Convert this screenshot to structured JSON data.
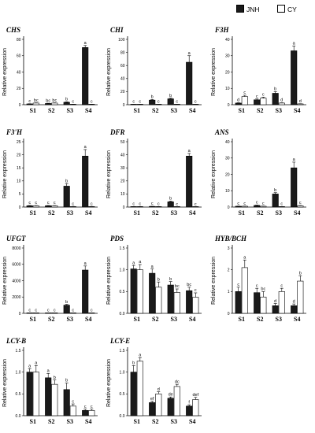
{
  "legend": {
    "items": [
      {
        "label": "JNH",
        "color": "#1a1a1a"
      },
      {
        "label": "CY",
        "color": "#ffffff"
      }
    ]
  },
  "chart_data": [
    {
      "type": "bar",
      "title": "CHS",
      "ylabel": "Relative expression",
      "categories": [
        "S1",
        "S2",
        "S3",
        "S4"
      ],
      "ylim": [
        0,
        80
      ],
      "yticks": [
        0,
        20,
        40,
        60,
        80
      ],
      "series": [
        {
          "name": "JNH",
          "values": [
            1,
            1.5,
            3,
            70
          ],
          "errors": [
            0.2,
            0.3,
            0.5,
            2.5
          ],
          "letters": [
            "c",
            "bc",
            "b",
            "a"
          ]
        },
        {
          "name": "CY",
          "values": [
            2,
            2,
            0.5,
            0.5
          ],
          "errors": [
            0.3,
            0.3,
            0.1,
            0.1
          ],
          "letters": [
            "bc",
            "bc",
            "c",
            "c"
          ]
        }
      ]
    },
    {
      "type": "bar",
      "title": "CHI",
      "ylabel": "Relative expression",
      "categories": [
        "S1",
        "S2",
        "S3",
        "S4"
      ],
      "ylim": [
        0,
        100
      ],
      "yticks": [
        0,
        20,
        40,
        60,
        80,
        100
      ],
      "series": [
        {
          "name": "JNH",
          "values": [
            0.5,
            7,
            9,
            65
          ],
          "errors": [
            0.1,
            1,
            1,
            10
          ],
          "letters": [
            "c",
            "b",
            "b",
            "a"
          ]
        },
        {
          "name": "CY",
          "values": [
            0.5,
            0.5,
            0.5,
            0.5
          ],
          "errors": [
            0.1,
            0.1,
            0.1,
            0.1
          ],
          "letters": [
            "c",
            "c",
            "c",
            "c"
          ]
        }
      ]
    },
    {
      "type": "bar",
      "title": "F3H",
      "ylabel": "Relative expression",
      "categories": [
        "S1",
        "S2",
        "S3",
        "S4"
      ],
      "ylim": [
        0,
        40
      ],
      "yticks": [
        0,
        10,
        20,
        30,
        40
      ],
      "series": [
        {
          "name": "JNH",
          "values": [
            1,
            3,
            7,
            33
          ],
          "errors": [
            0.2,
            0.5,
            1,
            3
          ],
          "letters": [
            "d",
            "c",
            "b",
            "a"
          ]
        },
        {
          "name": "CY",
          "values": [
            5,
            4,
            1,
            0.5
          ],
          "errors": [
            0.8,
            0.6,
            0.2,
            0.1
          ],
          "letters": [
            "c",
            "c",
            "d",
            "d"
          ]
        }
      ]
    },
    {
      "type": "bar",
      "title": "F3'H",
      "ylabel": "Relative expression",
      "categories": [
        "S1",
        "S2",
        "S3",
        "S4"
      ],
      "ylim": [
        0,
        25
      ],
      "yticks": [
        0,
        5,
        10,
        15,
        20,
        25
      ],
      "series": [
        {
          "name": "JNH",
          "values": [
            0.5,
            0.5,
            8,
            19.5
          ],
          "errors": [
            0.1,
            0.1,
            1,
            2.5
          ],
          "letters": [
            "c",
            "c",
            "b",
            "a"
          ]
        },
        {
          "name": "CY",
          "values": [
            0.5,
            0.5,
            0.2,
            0.2
          ],
          "errors": [
            0.1,
            0.1,
            0.05,
            0.05
          ],
          "letters": [
            "c",
            "c",
            "c",
            "c"
          ]
        }
      ]
    },
    {
      "type": "bar",
      "title": "DFR",
      "ylabel": "Relative expression",
      "categories": [
        "S1",
        "S2",
        "S3",
        "S4"
      ],
      "ylim": [
        0,
        50
      ],
      "yticks": [
        0,
        10,
        20,
        30,
        40,
        50
      ],
      "series": [
        {
          "name": "JNH",
          "values": [
            0.3,
            0.5,
            4,
            39
          ],
          "errors": [
            0.1,
            0.1,
            0.5,
            2
          ],
          "letters": [
            "c",
            "c",
            "b",
            "a"
          ]
        },
        {
          "name": "CY",
          "values": [
            0.3,
            0.3,
            0.2,
            0.2
          ],
          "errors": [
            0.1,
            0.1,
            0.05,
            0.05
          ],
          "letters": [
            "c",
            "c",
            "c",
            "c"
          ]
        }
      ]
    },
    {
      "type": "bar",
      "title": "ANS",
      "ylabel": "Relative expression",
      "categories": [
        "S1",
        "S2",
        "S3",
        "S4"
      ],
      "ylim": [
        0,
        40
      ],
      "yticks": [
        0,
        10,
        20,
        30,
        40
      ],
      "series": [
        {
          "name": "JNH",
          "values": [
            0.5,
            1,
            8,
            24
          ],
          "errors": [
            0.1,
            0.2,
            0.8,
            3.5
          ],
          "letters": [
            "c",
            "c",
            "b",
            "a"
          ]
        },
        {
          "name": "CY",
          "values": [
            0.5,
            0.5,
            0.2,
            0.8
          ],
          "errors": [
            0.1,
            0.1,
            0.05,
            0.2
          ],
          "letters": [
            "c",
            "c",
            "c",
            "c"
          ]
        }
      ]
    },
    {
      "type": "bar",
      "title": "UFGT",
      "ylabel": "Relative expression",
      "categories": [
        "S1",
        "S2",
        "S3",
        "S4"
      ],
      "ylim": [
        0,
        8000
      ],
      "yticks": [
        0,
        2000,
        4000,
        6000,
        8000
      ],
      "series": [
        {
          "name": "JNH",
          "values": [
            0,
            0,
            1000,
            5300
          ],
          "errors": [
            0,
            0,
            100,
            500
          ],
          "letters": [
            "c",
            "c",
            "b",
            "a"
          ]
        },
        {
          "name": "CY",
          "values": [
            0,
            0,
            0,
            0
          ],
          "errors": [
            0,
            0,
            0,
            0
          ],
          "letters": [
            "c",
            "c",
            "c",
            "c"
          ]
        }
      ]
    },
    {
      "type": "bar",
      "title": "PDS",
      "ylabel": "Relative expression",
      "categories": [
        "S1",
        "S2",
        "S3",
        "S4"
      ],
      "ylim": [
        0,
        1.5
      ],
      "yticks": [
        0.0,
        0.5,
        1.0,
        1.5
      ],
      "series": [
        {
          "name": "JNH",
          "values": [
            1.02,
            0.92,
            0.65,
            0.52
          ],
          "errors": [
            0.08,
            0.1,
            0.08,
            0.08
          ],
          "letters": [
            "a",
            "a",
            "b",
            "bc"
          ]
        },
        {
          "name": "CY",
          "values": [
            1.0,
            0.6,
            0.48,
            0.37
          ],
          "errors": [
            0.12,
            0.12,
            0.08,
            0.1
          ],
          "letters": [
            "a",
            "b",
            "bc",
            "c"
          ]
        }
      ]
    },
    {
      "type": "bar",
      "title": "HYB/BCH",
      "ylabel": "Relative expression",
      "categories": [
        "S1",
        "S2",
        "S3",
        "S4"
      ],
      "ylim": [
        0,
        3
      ],
      "yticks": [
        0,
        1,
        2,
        3
      ],
      "series": [
        {
          "name": "JNH",
          "values": [
            1.0,
            0.95,
            0.35,
            0.35
          ],
          "errors": [
            0.2,
            0.2,
            0.1,
            0.08
          ],
          "letters": [
            "c",
            "c",
            "d",
            "d"
          ]
        },
        {
          "name": "CY",
          "values": [
            2.1,
            0.75,
            1.0,
            1.48
          ],
          "errors": [
            0.35,
            0.25,
            0.15,
            0.25
          ],
          "letters": [
            "a",
            "bc",
            "c",
            "b"
          ]
        }
      ]
    },
    {
      "type": "bar",
      "title": "LCY-B",
      "ylabel": "Relative expression",
      "categories": [
        "S1",
        "S2",
        "S3",
        "S4"
      ],
      "ylim": [
        0,
        1.5
      ],
      "yticks": [
        0.0,
        0.5,
        1.0,
        1.5
      ],
      "series": [
        {
          "name": "JNH",
          "values": [
            1.0,
            0.87,
            0.6,
            0.12
          ],
          "errors": [
            0.08,
            0.1,
            0.15,
            0.03
          ],
          "letters": [
            "a",
            "a",
            "b",
            "c"
          ]
        },
        {
          "name": "CY",
          "values": [
            1.0,
            0.72,
            0.22,
            0.12
          ],
          "errors": [
            0.15,
            0.1,
            0.05,
            0.03
          ],
          "letters": [
            "a",
            "b",
            "c",
            "c"
          ]
        }
      ]
    },
    {
      "type": "bar",
      "title": "LCY-E",
      "ylabel": "Relative expression",
      "categories": [
        "S1",
        "S2",
        "S3",
        "S4"
      ],
      "ylim": [
        0,
        1.5
      ],
      "yticks": [
        0.0,
        0.5,
        1.0,
        1.5
      ],
      "series": [
        {
          "name": "JNH",
          "values": [
            1.0,
            0.3,
            0.4,
            0.22
          ],
          "errors": [
            0.15,
            0.03,
            0.03,
            0.03
          ],
          "letters": [
            "b",
            "ef",
            "de",
            "f"
          ]
        },
        {
          "name": "CY",
          "values": [
            1.25,
            0.5,
            0.67,
            0.37
          ],
          "errors": [
            0.08,
            0.05,
            0.05,
            0.05
          ],
          "letters": [
            "a",
            "d",
            "dc",
            "def"
          ]
        }
      ]
    }
  ]
}
